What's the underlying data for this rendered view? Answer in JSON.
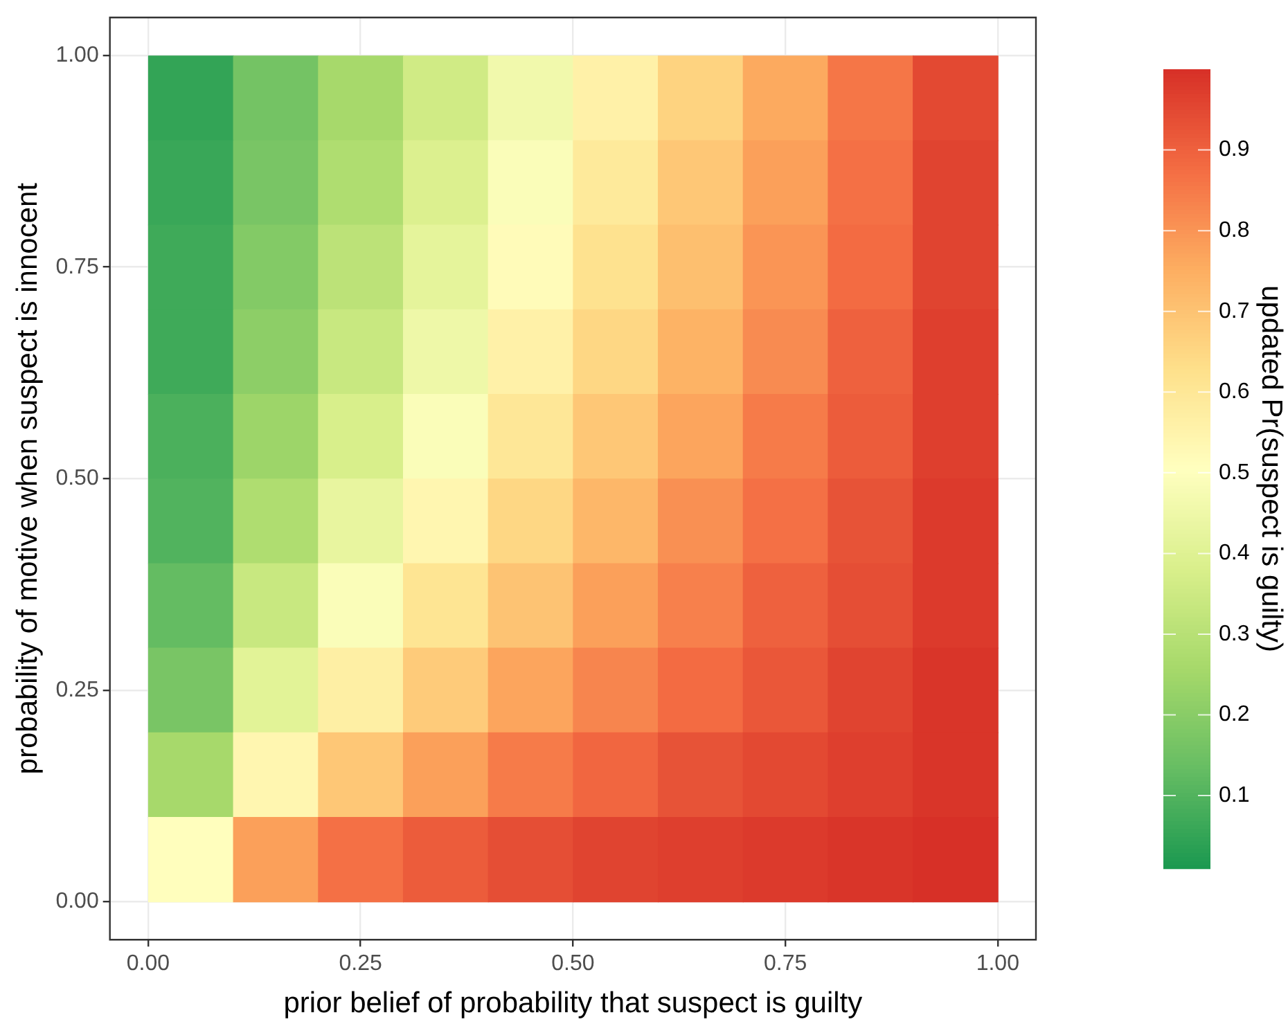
{
  "chart_data": {
    "type": "heatmap",
    "xlabel": "prior belief of probability that suspect is guilty",
    "ylabel": "probability of motive when suspect is innocent",
    "clabel": "updated Pr(suspect is guilty)",
    "x": [
      0.05,
      0.15,
      0.25,
      0.35,
      0.45,
      0.55,
      0.65,
      0.75,
      0.85,
      0.95
    ],
    "y": [
      0.95,
      0.85,
      0.75,
      0.65,
      0.55,
      0.45,
      0.35,
      0.25,
      0.15,
      0.05
    ],
    "cells": [
      [
        0.05,
        0.16,
        0.26,
        0.36,
        0.46,
        0.56,
        0.66,
        0.76,
        0.86,
        0.95
      ],
      [
        0.06,
        0.17,
        0.28,
        0.39,
        0.49,
        0.59,
        0.69,
        0.78,
        0.87,
        0.96
      ],
      [
        0.07,
        0.19,
        0.31,
        0.42,
        0.52,
        0.62,
        0.71,
        0.8,
        0.88,
        0.96
      ],
      [
        0.07,
        0.21,
        0.34,
        0.45,
        0.56,
        0.65,
        0.74,
        0.82,
        0.9,
        0.97
      ],
      [
        0.09,
        0.24,
        0.38,
        0.49,
        0.6,
        0.69,
        0.77,
        0.85,
        0.91,
        0.97
      ],
      [
        0.1,
        0.28,
        0.43,
        0.54,
        0.65,
        0.73,
        0.81,
        0.87,
        0.93,
        0.98
      ],
      [
        0.13,
        0.34,
        0.49,
        0.61,
        0.7,
        0.78,
        0.84,
        0.9,
        0.94,
        0.98
      ],
      [
        0.17,
        0.41,
        0.57,
        0.68,
        0.77,
        0.83,
        0.88,
        0.92,
        0.96,
        0.99
      ],
      [
        0.26,
        0.54,
        0.69,
        0.78,
        0.85,
        0.89,
        0.93,
        0.95,
        0.97,
        0.99
      ],
      [
        0.51,
        0.78,
        0.87,
        0.91,
        0.94,
        0.96,
        0.97,
        0.98,
        0.99,
        1.0
      ]
    ],
    "xlim": [
      -0.045,
      1.045
    ],
    "ylim": [
      -0.045,
      1.045
    ],
    "xticks": [
      {
        "value": 0,
        "label": "0.00"
      },
      {
        "value": 0.25,
        "label": "0.25"
      },
      {
        "value": 0.5,
        "label": "0.50"
      },
      {
        "value": 0.75,
        "label": "0.75"
      },
      {
        "value": 1,
        "label": "1.00"
      }
    ],
    "yticks": [
      {
        "value": 0,
        "label": "0.00"
      },
      {
        "value": 0.25,
        "label": "0.25"
      },
      {
        "value": 0.5,
        "label": "0.50"
      },
      {
        "value": 0.75,
        "label": "0.75"
      },
      {
        "value": 1,
        "label": "1.00"
      }
    ],
    "clim": [
      0.01,
      1.0
    ],
    "cticks": [
      0.1,
      0.2,
      0.3,
      0.4,
      0.5,
      0.6,
      0.7,
      0.8,
      0.9
    ],
    "grid": true
  }
}
